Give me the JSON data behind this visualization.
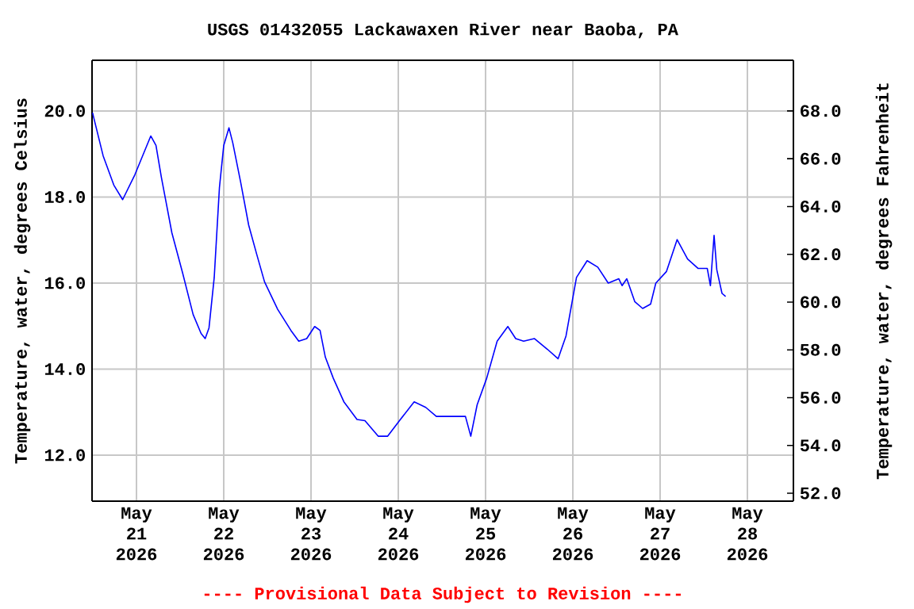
{
  "chart_data": {
    "type": "line",
    "title": "USGS 01432055 Lackawaxen River near Baoba, PA",
    "ylabel": "Temperature, water, degrees Celsius",
    "y2label": "Temperature, water, degrees Fahrenheit",
    "annotations": [
      "---- Provisional Data Subject to Revision ----"
    ],
    "x": [
      "2026-05-20T11:55",
      "2026-05-20T14:50",
      "2026-05-20T17:46",
      "2026-05-20T20:12",
      "2026-05-20T23:34",
      "2026-05-21T03:56",
      "2026-05-21T05:22",
      "2026-05-21T06:51",
      "2026-05-21T09:44",
      "2026-05-21T12:39",
      "2026-05-21T15:35",
      "2026-05-21T17:46",
      "2026-05-21T18:54",
      "2026-05-21T19:57",
      "2026-05-21T21:23",
      "2026-05-21T22:49",
      "2026-05-22T00:00",
      "2026-05-22T01:26",
      "2026-05-22T02:29",
      "2026-05-22T04:40",
      "2026-05-22T06:51",
      "2026-05-22T09:02",
      "2026-05-22T11:13",
      "2026-05-22T14:50",
      "2026-05-22T18:28",
      "2026-05-22T20:38",
      "2026-05-22T22:49",
      "2026-05-23T01:00",
      "2026-05-23T02:29",
      "2026-05-23T03:56",
      "2026-05-23T06:07",
      "2026-05-23T09:02",
      "2026-05-23T12:39",
      "2026-05-23T14:50",
      "2026-05-23T18:28",
      "2026-05-23T21:05",
      "2026-05-24T00:19",
      "2026-05-24T04:22",
      "2026-05-24T07:33",
      "2026-05-24T10:28",
      "2026-05-24T14:50",
      "2026-05-24T18:28",
      "2026-05-24T19:56",
      "2026-05-24T21:41",
      "2026-05-25T00:19",
      "2026-05-25T03:11",
      "2026-05-25T06:07",
      "2026-05-25T08:17",
      "2026-05-25T10:28",
      "2026-05-25T13:24",
      "2026-05-25T17:01",
      "2026-05-25T19:56",
      "2026-05-25T22:07",
      "2026-05-26T01:00",
      "2026-05-26T03:56",
      "2026-05-26T06:51",
      "2026-05-26T09:44",
      "2026-05-26T12:39",
      "2026-05-26T13:32",
      "2026-05-26T14:50",
      "2026-05-26T17:01",
      "2026-05-26T19:12",
      "2026-05-26T21:23",
      "2026-05-26T22:49",
      "2026-05-27T01:45",
      "2026-05-27T04:40",
      "2026-05-27T07:33",
      "2026-05-27T10:28",
      "2026-05-27T12:58",
      "2026-05-27T13:50",
      "2026-05-27T14:50",
      "2026-05-27T15:35",
      "2026-05-27T17:01",
      "2026-05-27T18:01"
    ],
    "values": [
      19.96,
      18.96,
      18.28,
      17.94,
      18.52,
      19.42,
      19.2,
      18.46,
      17.17,
      16.25,
      15.27,
      14.83,
      14.71,
      14.96,
      16.13,
      18.22,
      19.2,
      19.61,
      19.26,
      18.34,
      17.35,
      16.68,
      16.03,
      15.39,
      14.9,
      14.65,
      14.71,
      14.99,
      14.9,
      14.28,
      13.79,
      13.24,
      12.83,
      12.8,
      12.44,
      12.44,
      12.8,
      13.24,
      13.11,
      12.9,
      12.9,
      12.9,
      12.44,
      13.17,
      13.79,
      14.65,
      14.99,
      14.71,
      14.65,
      14.71,
      14.46,
      14.24,
      14.77,
      16.13,
      16.52,
      16.37,
      16.0,
      16.1,
      15.94,
      16.1,
      15.57,
      15.41,
      15.51,
      16.0,
      16.27,
      17.01,
      16.56,
      16.34,
      16.34,
      15.94,
      17.11,
      16.31,
      15.76,
      15.69
    ],
    "color": "#0000ff",
    "xlim": [
      "2026-05-20T11:47",
      "2026-05-28T12:39"
    ],
    "xticks": [
      {
        "value": "2026-05-21",
        "label": "May 21 2026"
      },
      {
        "value": "2026-05-22",
        "label": "May 22 2026"
      },
      {
        "value": "2026-05-23",
        "label": "May 23 2026"
      },
      {
        "value": "2026-05-24",
        "label": "May 24 2026"
      },
      {
        "value": "2026-05-25",
        "label": "May 25 2026"
      },
      {
        "value": "2026-05-26",
        "label": "May 26 2026"
      },
      {
        "value": "2026-05-27",
        "label": "May 27 2026"
      },
      {
        "value": "2026-05-28",
        "label": "May 28 2026"
      }
    ],
    "ylim": [
      10.93,
      21.18
    ],
    "yticks": [
      {
        "value": 12,
        "label": "12.0"
      },
      {
        "value": 14,
        "label": "14.0"
      },
      {
        "value": 16,
        "label": "16.0"
      },
      {
        "value": 18,
        "label": "18.0"
      },
      {
        "value": 20,
        "label": "20.0"
      }
    ],
    "y2lim": [
      51.67,
      70.12
    ],
    "y2ticks": [
      {
        "value": 52,
        "label": "52.0"
      },
      {
        "value": 54,
        "label": "54.0"
      },
      {
        "value": 56,
        "label": "56.0"
      },
      {
        "value": 58,
        "label": "58.0"
      },
      {
        "value": 60,
        "label": "60.0"
      },
      {
        "value": 62,
        "label": "62.0"
      },
      {
        "value": 64,
        "label": "64.0"
      },
      {
        "value": 66,
        "label": "66.0"
      },
      {
        "value": 68,
        "label": "68.0"
      }
    ],
    "grid": true
  }
}
